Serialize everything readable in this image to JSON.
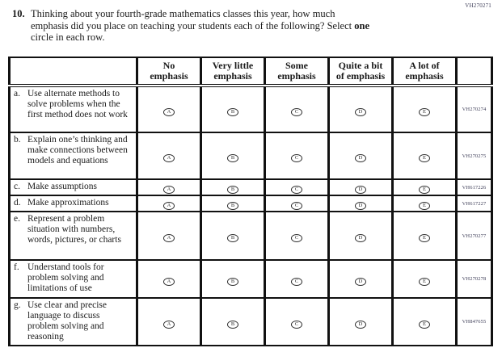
{
  "page": {
    "top_right_code": "VH270271"
  },
  "question": {
    "number": "10.",
    "line1": "Thinking about your fourth-grade mathematics classes this year, how much",
    "line2_before_bold": "emphasis did you place on teaching your students each of the following? Select ",
    "bold_word": "one",
    "line3": "circle in each row."
  },
  "table": {
    "columns": [
      {
        "label_line1": "No",
        "label_line2": "emphasis",
        "oval_letter": "A"
      },
      {
        "label_line1": "Very little",
        "label_line2": "emphasis",
        "oval_letter": "B"
      },
      {
        "label_line1": "Some",
        "label_line2": "emphasis",
        "oval_letter": "C"
      },
      {
        "label_line1": "Quite a bit",
        "label_line2": "of emphasis",
        "oval_letter": "D"
      },
      {
        "label_line1": "A lot of",
        "label_line2": "emphasis",
        "oval_letter": "E"
      }
    ],
    "rows": [
      {
        "letter": "a.",
        "text": "Use alternate methods to solve problems when the first method does not work",
        "code": "VH270274"
      },
      {
        "letter": "b.",
        "text": "Explain one’s thinking and make connections between models and equations",
        "code": "VH270275"
      },
      {
        "letter": "c.",
        "text": "Make assumptions",
        "code": "VH617226"
      },
      {
        "letter": "d.",
        "text": "Make approximations",
        "code": "VH617227"
      },
      {
        "letter": "e.",
        "text": "Represent a problem situation with numbers, words, pictures, or charts",
        "code": "VH270277"
      },
      {
        "letter": "f.",
        "text": "Understand tools for problem solving and limitations of use",
        "code": "VH270278"
      },
      {
        "letter": "g.",
        "text": "Use clear and precise language to discuss problem solving and reasoning",
        "code": "VH847655"
      }
    ]
  }
}
